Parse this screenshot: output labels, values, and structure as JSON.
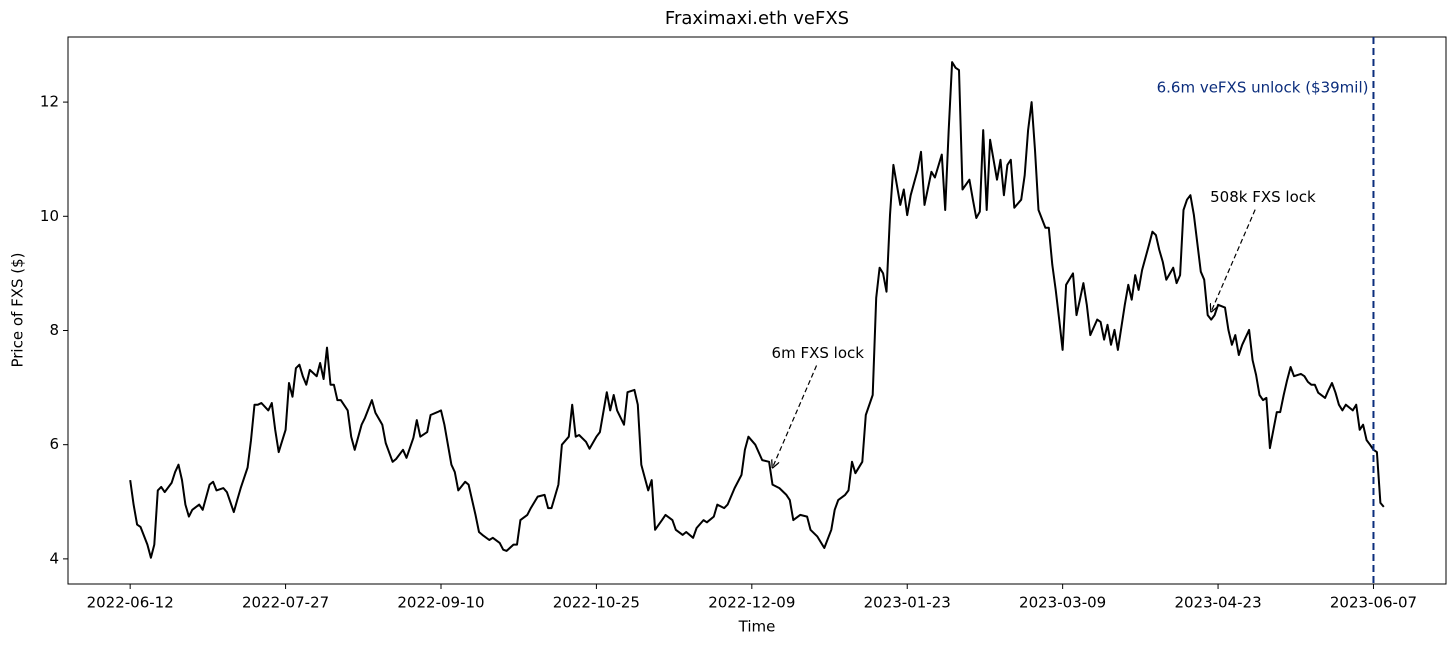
{
  "chart_data": {
    "type": "line",
    "title": "Fraximaxi.eth veFXS",
    "xlabel": "Time",
    "ylabel": "Price of FXS ($)",
    "color": "#000000",
    "xlim": [
      "2022-05-25",
      "2023-06-28"
    ],
    "xticks": [
      "2022-06-12",
      "2022-07-27",
      "2022-09-10",
      "2022-10-25",
      "2022-12-09",
      "2023-01-23",
      "2023-03-09",
      "2023-04-23",
      "2023-06-07"
    ],
    "ylim": [
      3.56,
      13.14
    ],
    "yticks": [
      4,
      6,
      8,
      10,
      12
    ],
    "x": [
      "2022-06-12",
      "2022-06-13",
      "2022-06-14",
      "2022-06-15",
      "2022-06-17",
      "2022-06-18",
      "2022-06-19",
      "2022-06-20",
      "2022-06-21",
      "2022-06-22",
      "2022-06-24",
      "2022-06-25",
      "2022-06-26",
      "2022-06-27",
      "2022-06-28",
      "2022-06-29",
      "2022-06-30",
      "2022-07-02",
      "2022-07-03",
      "2022-07-05",
      "2022-07-06",
      "2022-07-07",
      "2022-07-09",
      "2022-07-10",
      "2022-07-12",
      "2022-07-13",
      "2022-07-14",
      "2022-07-16",
      "2022-07-17",
      "2022-07-18",
      "2022-07-19",
      "2022-07-20",
      "2022-07-22",
      "2022-07-23",
      "2022-07-24",
      "2022-07-25",
      "2022-07-27",
      "2022-07-28",
      "2022-07-29",
      "2022-07-30",
      "2022-07-31",
      "2022-08-01",
      "2022-08-02",
      "2022-08-03",
      "2022-08-05",
      "2022-08-06",
      "2022-08-07",
      "2022-08-08",
      "2022-08-09",
      "2022-08-10",
      "2022-08-11",
      "2022-08-12",
      "2022-08-14",
      "2022-08-15",
      "2022-08-16",
      "2022-08-18",
      "2022-08-19",
      "2022-08-21",
      "2022-08-22",
      "2022-08-24",
      "2022-08-25",
      "2022-08-27",
      "2022-08-28",
      "2022-08-30",
      "2022-08-31",
      "2022-09-02",
      "2022-09-03",
      "2022-09-04",
      "2022-09-06",
      "2022-09-07",
      "2022-09-09",
      "2022-09-10",
      "2022-09-11",
      "2022-09-13",
      "2022-09-14",
      "2022-09-15",
      "2022-09-17",
      "2022-09-18",
      "2022-09-20",
      "2022-09-21",
      "2022-09-22",
      "2022-09-24",
      "2022-09-25",
      "2022-09-27",
      "2022-09-28",
      "2022-09-29",
      "2022-10-01",
      "2022-10-02",
      "2022-10-03",
      "2022-10-05",
      "2022-10-06",
      "2022-10-08",
      "2022-10-10",
      "2022-10-11",
      "2022-10-12",
      "2022-10-14",
      "2022-10-15",
      "2022-10-17",
      "2022-10-18",
      "2022-10-19",
      "2022-10-20",
      "2022-10-22",
      "2022-10-23",
      "2022-10-25",
      "2022-10-26",
      "2022-10-28",
      "2022-10-29",
      "2022-10-30",
      "2022-10-31",
      "2022-11-02",
      "2022-11-03",
      "2022-11-05",
      "2022-11-06",
      "2022-11-07",
      "2022-11-09",
      "2022-11-10",
      "2022-11-11",
      "2022-11-13",
      "2022-11-14",
      "2022-11-16",
      "2022-11-17",
      "2022-11-19",
      "2022-11-20",
      "2022-11-22",
      "2022-11-23",
      "2022-11-25",
      "2022-11-26",
      "2022-11-28",
      "2022-11-29",
      "2022-12-01",
      "2022-12-02",
      "2022-12-04",
      "2022-12-06",
      "2022-12-07",
      "2022-12-08",
      "2022-12-10",
      "2022-12-12",
      "2022-12-14",
      "2022-12-15",
      "2022-12-17",
      "2022-12-19",
      "2022-12-20",
      "2022-12-21",
      "2022-12-23",
      "2022-12-25",
      "2022-12-26",
      "2022-12-28",
      "2022-12-30",
      "2023-01-01",
      "2023-01-02",
      "2023-01-03",
      "2023-01-05",
      "2023-01-06",
      "2023-01-07",
      "2023-01-08",
      "2023-01-10",
      "2023-01-11",
      "2023-01-13",
      "2023-01-14",
      "2023-01-15",
      "2023-01-16",
      "2023-01-17",
      "2023-01-18",
      "2023-01-19",
      "2023-01-21",
      "2023-01-22",
      "2023-01-23",
      "2023-01-24",
      "2023-01-26",
      "2023-01-27",
      "2023-01-28",
      "2023-01-30",
      "2023-01-31",
      "2023-02-02",
      "2023-02-03",
      "2023-02-04",
      "2023-02-05",
      "2023-02-06",
      "2023-02-07",
      "2023-02-08",
      "2023-02-10",
      "2023-02-11",
      "2023-02-12",
      "2023-02-13",
      "2023-02-14",
      "2023-02-15",
      "2023-02-16",
      "2023-02-18",
      "2023-02-19",
      "2023-02-20",
      "2023-02-21",
      "2023-02-22",
      "2023-02-23",
      "2023-02-25",
      "2023-02-26",
      "2023-02-27",
      "2023-02-28",
      "2023-03-01",
      "2023-03-02",
      "2023-03-04",
      "2023-03-05",
      "2023-03-06",
      "2023-03-07",
      "2023-03-08",
      "2023-03-09",
      "2023-03-10",
      "2023-03-12",
      "2023-03-13",
      "2023-03-14",
      "2023-03-15",
      "2023-03-16",
      "2023-03-17",
      "2023-03-19",
      "2023-03-20",
      "2023-03-21",
      "2023-03-22",
      "2023-03-23",
      "2023-03-24",
      "2023-03-25",
      "2023-03-27",
      "2023-03-28",
      "2023-03-29",
      "2023-03-30",
      "2023-03-31",
      "2023-04-01",
      "2023-04-03",
      "2023-04-04",
      "2023-04-05",
      "2023-04-06",
      "2023-04-07",
      "2023-04-08",
      "2023-04-10",
      "2023-04-11",
      "2023-04-12",
      "2023-04-13",
      "2023-04-14",
      "2023-04-15",
      "2023-04-16",
      "2023-04-18",
      "2023-04-19",
      "2023-04-20",
      "2023-04-21",
      "2023-04-22",
      "2023-04-23",
      "2023-04-25",
      "2023-04-26",
      "2023-04-27",
      "2023-04-28",
      "2023-04-29",
      "2023-04-30",
      "2023-05-02",
      "2023-05-03",
      "2023-05-04",
      "2023-05-05",
      "2023-05-06",
      "2023-05-07",
      "2023-05-08",
      "2023-05-10",
      "2023-05-11",
      "2023-05-12",
      "2023-05-13",
      "2023-05-14",
      "2023-05-15",
      "2023-05-17",
      "2023-05-18",
      "2023-05-19",
      "2023-05-20",
      "2023-05-21",
      "2023-05-22",
      "2023-05-24",
      "2023-05-25",
      "2023-05-26",
      "2023-05-27",
      "2023-05-28",
      "2023-05-29",
      "2023-05-30",
      "2023-06-01",
      "2023-06-02",
      "2023-06-03",
      "2023-06-04",
      "2023-06-05",
      "2023-06-06",
      "2023-06-07",
      "2023-06-08",
      "2023-06-09",
      "2023-06-10"
    ],
    "values": [
      5.38,
      4.95,
      4.6,
      4.56,
      4.25,
      4.02,
      4.25,
      5.2,
      5.26,
      5.17,
      5.33,
      5.52,
      5.65,
      5.38,
      4.95,
      4.74,
      4.86,
      4.95,
      4.86,
      5.3,
      5.35,
      5.2,
      5.24,
      5.17,
      4.82,
      5.03,
      5.24,
      5.6,
      6.08,
      6.7,
      6.7,
      6.73,
      6.6,
      6.73,
      6.26,
      5.87,
      6.26,
      7.08,
      6.84,
      7.34,
      7.4,
      7.2,
      7.05,
      7.31,
      7.2,
      7.43,
      7.15,
      7.7,
      7.05,
      7.05,
      6.78,
      6.78,
      6.6,
      6.14,
      5.91,
      6.35,
      6.47,
      6.78,
      6.56,
      6.35,
      6.03,
      5.7,
      5.75,
      5.91,
      5.77,
      6.12,
      6.43,
      6.14,
      6.22,
      6.52,
      6.57,
      6.6,
      6.35,
      5.65,
      5.52,
      5.2,
      5.35,
      5.3,
      4.77,
      4.47,
      4.42,
      4.33,
      4.37,
      4.28,
      4.16,
      4.14,
      4.25,
      4.25,
      4.68,
      4.77,
      4.89,
      5.09,
      5.12,
      4.89,
      4.89,
      5.3,
      6.0,
      6.14,
      6.7,
      6.14,
      6.17,
      6.05,
      5.93,
      6.14,
      6.22,
      6.92,
      6.6,
      6.87,
      6.6,
      6.35,
      6.92,
      6.96,
      6.7,
      5.65,
      5.2,
      5.38,
      4.51,
      4.68,
      4.77,
      4.68,
      4.51,
      4.42,
      4.47,
      4.37,
      4.54,
      4.68,
      4.64,
      4.74,
      4.95,
      4.89,
      4.95,
      5.24,
      5.47,
      5.91,
      6.14,
      6.0,
      5.73,
      5.7,
      5.3,
      5.24,
      5.12,
      5.03,
      4.68,
      4.77,
      4.74,
      4.51,
      4.39,
      4.19,
      4.51,
      4.86,
      5.03,
      5.12,
      5.2,
      5.7,
      5.5,
      5.7,
      6.52,
      6.87,
      8.57,
      9.1,
      9.0,
      8.68,
      10.02,
      10.9,
      10.2,
      10.47,
      10.02,
      10.37,
      10.81,
      11.13,
      10.2,
      10.78,
      10.68,
      11.08,
      10.11,
      11.51,
      12.7,
      12.6,
      12.56,
      10.47,
      10.64,
      10.29,
      9.97,
      10.08,
      11.51,
      10.11,
      11.34,
      10.64,
      10.99,
      10.37,
      10.9,
      10.99,
      10.15,
      10.29,
      10.72,
      11.51,
      12.0,
      11.16,
      10.11,
      9.8,
      9.8,
      9.15,
      8.71,
      8.19,
      7.66,
      8.8,
      9.0,
      8.27,
      8.54,
      8.83,
      8.45,
      7.92,
      8.19,
      8.15,
      7.84,
      8.1,
      7.75,
      8.01,
      7.66,
      8.45,
      8.8,
      8.54,
      8.97,
      8.71,
      9.06,
      9.5,
      9.73,
      9.67,
      9.41,
      9.2,
      8.89,
      9.1,
      8.83,
      8.97,
      10.11,
      10.29,
      10.37,
      10.02,
      9.03,
      8.89,
      8.27,
      8.19,
      8.27,
      8.45,
      8.4,
      8.01,
      7.75,
      7.92,
      7.57,
      7.75,
      8.01,
      7.48,
      7.22,
      6.87,
      6.78,
      6.82,
      5.94,
      6.57,
      6.57,
      6.87,
      7.13,
      7.36,
      7.2,
      7.24,
      7.2,
      7.1,
      7.05,
      7.05,
      6.91,
      6.82,
      6.96,
      7.08,
      6.91,
      6.7,
      6.6,
      6.7,
      6.6,
      6.7,
      6.26,
      6.35,
      6.08,
      6.0,
      5.91,
      5.87,
      4.98,
      4.91
    ],
    "annotations": [
      {
        "text": "6m FXS lock",
        "x": "2022-12-15",
        "y": 5.6
      },
      {
        "text": "508k FXS lock",
        "x": "2023-04-21",
        "y": 8.33
      }
    ],
    "vlines": [
      {
        "x": "2023-06-07",
        "label": "6.6m veFXS unlock ($39mil)",
        "color": "#0b2d7c"
      }
    ]
  }
}
